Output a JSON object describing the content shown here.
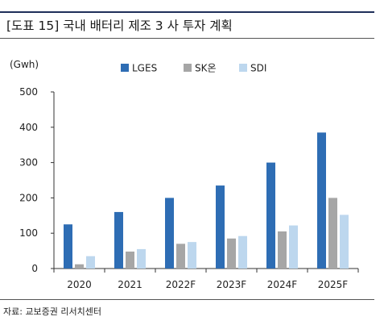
{
  "header": {
    "title": "[도표 15] 국내 배터리 제조 3 사 투자 계획"
  },
  "footer": {
    "source": "자료: 교보증권 리서치센터"
  },
  "colors": {
    "LGES": "#2e6db4",
    "SK온": "#a6a6a6",
    "SDI": "#bdd7ee"
  },
  "chart_data": {
    "type": "bar",
    "title": "",
    "unit_label": "(Gwh)",
    "xlabel": "",
    "ylabel": "",
    "categories": [
      "2020",
      "2021",
      "2022F",
      "2023F",
      "2024F",
      "2025F"
    ],
    "series": [
      {
        "name": "LGES",
        "values": [
          125,
          160,
          200,
          235,
          300,
          385
        ]
      },
      {
        "name": "SK온",
        "values": [
          12,
          48,
          70,
          85,
          105,
          200
        ]
      },
      {
        "name": "SDI",
        "values": [
          35,
          55,
          75,
          92,
          122,
          152
        ]
      }
    ],
    "yticks": [
      "0",
      "100",
      "200",
      "300",
      "400",
      "500"
    ],
    "ylim": [
      0,
      500
    ],
    "grid": false,
    "legend_position": "top-center"
  }
}
